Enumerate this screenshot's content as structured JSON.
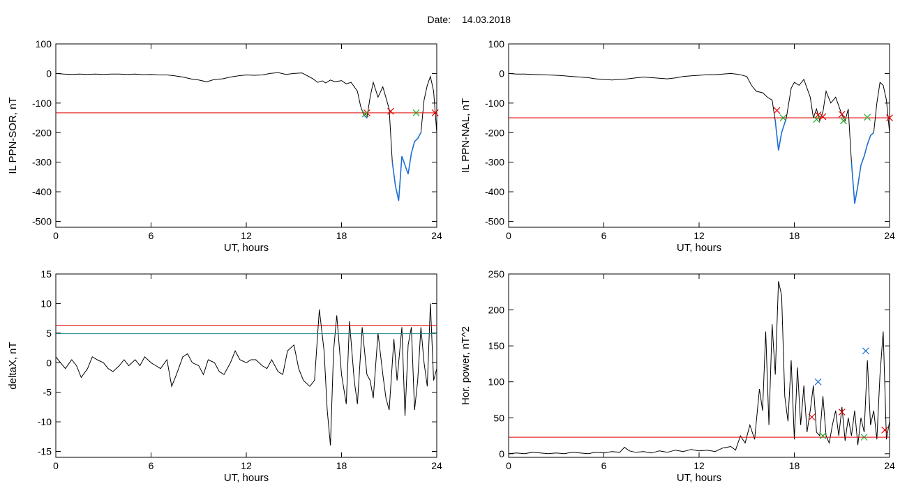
{
  "header": {
    "date_label": "Date:",
    "date_value": "14.03.2018"
  },
  "colors": {
    "trace": "#000000",
    "highlight": "#1f6fd6",
    "threshold": "#e00000",
    "threshold2": "#1a8a8a",
    "mark_red": "#e00000",
    "mark_green": "#22aa22",
    "mark_blue": "#1f6fd6"
  },
  "chart_data": [
    {
      "id": "tl",
      "type": "line",
      "xlabel": "UT, hours",
      "ylabel": "IL PPN-SOR, nT",
      "xlim": [
        0,
        24
      ],
      "ylim": [
        -520,
        100
      ],
      "xticks": [
        0,
        6,
        12,
        18,
        24
      ],
      "yticks": [
        100,
        0,
        -100,
        -200,
        -300,
        -400,
        -500
      ],
      "series": [
        {
          "x": [
            0,
            0.5,
            1,
            1.5,
            2,
            2.5,
            3,
            3.5,
            4,
            4.5,
            5,
            5.5,
            6,
            6.5,
            7,
            7.5,
            8,
            8.5,
            9,
            9.5,
            10,
            10.5,
            11,
            11.5,
            12,
            12.5,
            13,
            13.5,
            14,
            14.5,
            15,
            15.5,
            16,
            16.2,
            16.5,
            16.8,
            17,
            17.3,
            17.6,
            18,
            18.3,
            18.6,
            19,
            19.2,
            19.4,
            19.6,
            19.8,
            20,
            20.3,
            20.6,
            21,
            21.2,
            21.4,
            21.6,
            21.8,
            22,
            22.2,
            22.4,
            22.6,
            22.8,
            23,
            23.2,
            23.4,
            23.6,
            23.8,
            24
          ],
          "y": [
            0,
            -2,
            -3,
            -2,
            -3,
            -2,
            -3,
            -2,
            -2,
            -3,
            -2,
            -4,
            -3,
            -5,
            -5,
            -8,
            -12,
            -18,
            -22,
            -28,
            -20,
            -18,
            -12,
            -8,
            -5,
            -6,
            -5,
            0,
            3,
            -3,
            0,
            2,
            -12,
            -18,
            -30,
            -25,
            -32,
            -22,
            -28,
            -24,
            -35,
            -30,
            -60,
            -110,
            -140,
            -150,
            -80,
            -30,
            -80,
            -45,
            -120,
            -300,
            -380,
            -430,
            -280,
            -310,
            -340,
            -270,
            -230,
            -220,
            -200,
            -90,
            -40,
            -10,
            -60,
            -200
          ]
        }
      ],
      "threshold": -133,
      "marks": {
        "red": [
          [
            19.6,
            -133
          ],
          [
            21.1,
            -128
          ],
          [
            23.9,
            -133
          ]
        ],
        "green": [
          [
            19.5,
            -137
          ],
          [
            22.7,
            -133
          ]
        ]
      }
    },
    {
      "id": "tr",
      "type": "line",
      "xlabel": "UT, hours",
      "ylabel": "IL PPN-NAL, nT",
      "xlim": [
        0,
        24
      ],
      "ylim": [
        -520,
        100
      ],
      "xticks": [
        0,
        6,
        12,
        18,
        24
      ],
      "yticks": [
        100,
        0,
        -100,
        -200,
        -300,
        -400,
        -500
      ],
      "series": [
        {
          "x": [
            0,
            0.5,
            1,
            1.5,
            2,
            2.5,
            3,
            3.5,
            4,
            4.5,
            5,
            5.5,
            6,
            6.5,
            7,
            7.5,
            8,
            8.5,
            9,
            9.5,
            10,
            10.5,
            11,
            11.5,
            12,
            12.5,
            13,
            13.5,
            14,
            14.5,
            15,
            15.3,
            15.6,
            16,
            16.3,
            16.6,
            16.8,
            17,
            17.2,
            17.5,
            17.8,
            18,
            18.3,
            18.6,
            19,
            19.2,
            19.4,
            19.6,
            19.8,
            20,
            20.3,
            20.6,
            21,
            21.2,
            21.4,
            21.6,
            21.8,
            22,
            22.2,
            22.4,
            22.6,
            22.8,
            23,
            23.2,
            23.4,
            23.6,
            23.8,
            24
          ],
          "y": [
            0,
            -2,
            -2,
            -3,
            -4,
            -5,
            -6,
            -8,
            -10,
            -12,
            -14,
            -18,
            -20,
            -22,
            -20,
            -18,
            -15,
            -12,
            -14,
            -16,
            -18,
            -15,
            -10,
            -8,
            -6,
            -4,
            -4,
            -2,
            0,
            -3,
            -10,
            -40,
            -60,
            -65,
            -80,
            -90,
            -160,
            -260,
            -200,
            -150,
            -50,
            -30,
            -40,
            -20,
            -80,
            -150,
            -120,
            -160,
            -130,
            -60,
            -100,
            -80,
            -140,
            -160,
            -120,
            -300,
            -440,
            -380,
            -310,
            -280,
            -240,
            -210,
            -200,
            -100,
            -30,
            -40,
            -90,
            -200
          ]
        }
      ],
      "threshold": -150,
      "marks": {
        "red": [
          [
            16.9,
            -125
          ],
          [
            19.5,
            -140
          ],
          [
            19.8,
            -146
          ],
          [
            21.0,
            -138
          ],
          [
            24.0,
            -150
          ]
        ],
        "green": [
          [
            17.3,
            -150
          ],
          [
            19.4,
            -155
          ],
          [
            21.1,
            -160
          ],
          [
            22.6,
            -148
          ]
        ]
      }
    },
    {
      "id": "bl",
      "type": "line",
      "xlabel": "UT, hours",
      "ylabel": "deltaX, nT",
      "xlim": [
        0,
        24
      ],
      "ylim": [
        -16,
        15
      ],
      "xticks": [
        0,
        6,
        12,
        18,
        24
      ],
      "yticks": [
        15,
        10,
        5,
        0,
        -5,
        -10,
        -15
      ],
      "series": [
        {
          "x": [
            0,
            0.3,
            0.6,
            1,
            1.3,
            1.6,
            2,
            2.3,
            2.6,
            3,
            3.3,
            3.6,
            4,
            4.3,
            4.6,
            5,
            5.3,
            5.6,
            6,
            6.3,
            6.6,
            7,
            7.3,
            7.6,
            8,
            8.3,
            8.6,
            9,
            9.3,
            9.6,
            10,
            10.3,
            10.6,
            11,
            11.3,
            11.6,
            12,
            12.3,
            12.6,
            13,
            13.3,
            13.6,
            14,
            14.3,
            14.6,
            15,
            15.3,
            15.6,
            16,
            16.3,
            16.6,
            16.9,
            17.1,
            17.3,
            17.5,
            17.7,
            18,
            18.3,
            18.5,
            18.8,
            19,
            19.3,
            19.6,
            19.8,
            20,
            20.3,
            20.6,
            20.8,
            21,
            21.3,
            21.5,
            21.8,
            22,
            22.2,
            22.4,
            22.6,
            22.8,
            23,
            23.2,
            23.4,
            23.6,
            23.8,
            24
          ],
          "y": [
            1,
            0,
            -1,
            0.5,
            -0.5,
            -2.5,
            -1,
            1,
            0.5,
            0,
            -1,
            -1.5,
            -0.5,
            0.5,
            -0.5,
            0.5,
            -0.5,
            1,
            0,
            -0.5,
            -1,
            0.5,
            -4,
            -2,
            1,
            1.5,
            0,
            -0.5,
            -2,
            0.5,
            0,
            -1.5,
            -2,
            0,
            2,
            0.5,
            0,
            0.5,
            0.5,
            -0.5,
            -1,
            0.5,
            -1.5,
            -2,
            2,
            3,
            -1,
            -3,
            -4,
            -3,
            9,
            2,
            -8,
            -14,
            2,
            8,
            -2,
            -7,
            7,
            -3,
            -7,
            6,
            -2,
            -3,
            -6,
            5,
            -2,
            -6,
            -8,
            4,
            -3,
            6,
            -9,
            3,
            6,
            -8,
            -3,
            6,
            0,
            -4,
            10,
            -3,
            -1
          ]
        }
      ],
      "threshold": 6.3,
      "threshold2": 4.9,
      "marks": {
        "red": [],
        "green": []
      }
    },
    {
      "id": "br",
      "type": "line",
      "xlabel": "UT, hours",
      "ylabel": "Hor. power, nT^2",
      "xlim": [
        0,
        24
      ],
      "ylim": [
        -5,
        250
      ],
      "xticks": [
        0,
        6,
        12,
        18,
        24
      ],
      "yticks": [
        250,
        200,
        150,
        100,
        50,
        0
      ],
      "series": [
        {
          "x": [
            0,
            0.5,
            1,
            1.5,
            2,
            2.5,
            3,
            3.5,
            4,
            4.5,
            5,
            5.5,
            6,
            6.5,
            7,
            7.3,
            7.6,
            8,
            8.5,
            9,
            9.5,
            10,
            10.5,
            11,
            11.5,
            12,
            12.5,
            13,
            13.5,
            14,
            14.3,
            14.6,
            14.9,
            15.2,
            15.5,
            15.8,
            16,
            16.2,
            16.4,
            16.6,
            16.8,
            17,
            17.2,
            17.4,
            17.6,
            17.8,
            18,
            18.2,
            18.4,
            18.6,
            18.8,
            19,
            19.2,
            19.4,
            19.6,
            19.8,
            20,
            20.2,
            20.4,
            20.6,
            20.8,
            21,
            21.2,
            21.4,
            21.6,
            21.8,
            22,
            22.2,
            22.4,
            22.6,
            22.8,
            23,
            23.2,
            23.4,
            23.6,
            23.8,
            24
          ],
          "y": [
            0,
            1,
            0,
            2,
            1,
            0,
            1,
            0,
            2,
            1,
            0,
            2,
            1,
            3,
            2,
            9,
            4,
            2,
            3,
            1,
            4,
            2,
            5,
            3,
            6,
            4,
            5,
            3,
            8,
            10,
            5,
            25,
            15,
            40,
            20,
            90,
            60,
            170,
            40,
            180,
            110,
            240,
            220,
            80,
            45,
            130,
            20,
            120,
            40,
            95,
            30,
            60,
            95,
            30,
            25,
            80,
            25,
            15,
            40,
            60,
            25,
            65,
            18,
            50,
            25,
            60,
            12,
            50,
            30,
            130,
            40,
            60,
            20,
            110,
            170,
            20,
            45
          ]
        }
      ],
      "threshold": 23,
      "marks": {
        "red": [
          [
            19.1,
            51
          ],
          [
            21.0,
            58
          ],
          [
            23.7,
            33
          ]
        ],
        "green": [
          [
            19.8,
            25
          ],
          [
            22.4,
            23
          ]
        ],
        "blue": [
          [
            19.5,
            100
          ],
          [
            22.5,
            143
          ]
        ]
      }
    }
  ]
}
